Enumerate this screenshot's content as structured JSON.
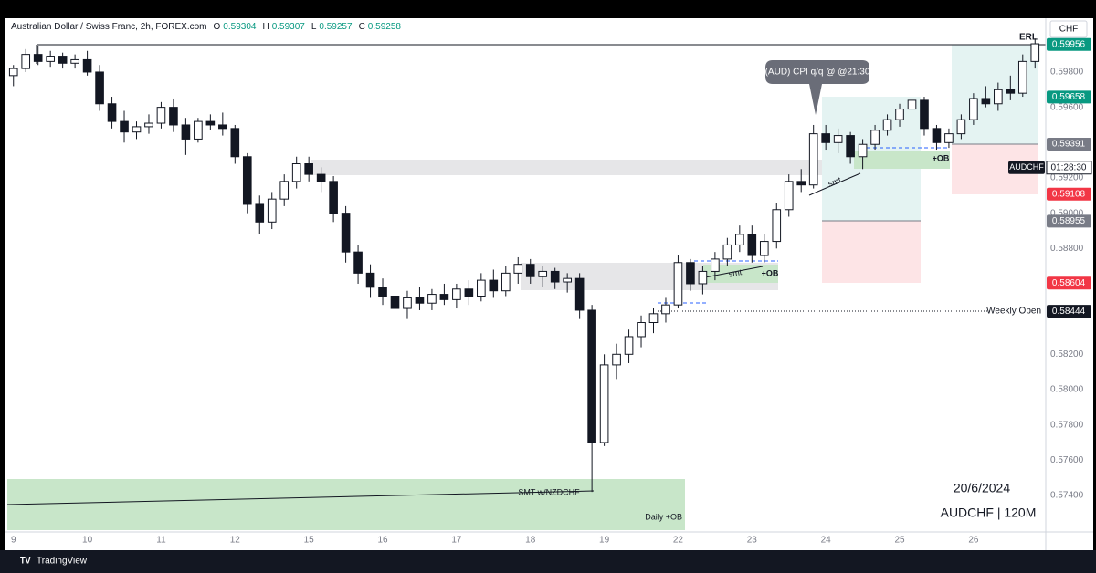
{
  "chart_data": {
    "type": "candlestick",
    "title": "Australian Dollar / Swiss Franc, 2h, FOREX.com",
    "ohlc_labels": [
      "O",
      "H",
      "L",
      "C"
    ],
    "ohlc_values": [
      0.59304,
      0.59307,
      0.59257,
      0.59258
    ],
    "currency": "CHF",
    "symbol": "AUDCHF",
    "countdown": "01:28:30",
    "footer": "TradingView",
    "categories": [
      "9",
      null,
      null,
      null,
      null,
      null,
      "10",
      null,
      null,
      null,
      null,
      null,
      "11",
      null,
      null,
      null,
      null,
      null,
      "12",
      null,
      null,
      null,
      null,
      null,
      "15",
      null,
      null,
      null,
      null,
      null,
      "16",
      null,
      null,
      null,
      null,
      null,
      "17",
      null,
      null,
      null,
      null,
      null,
      "18",
      null,
      null,
      null,
      null,
      null,
      "19",
      null,
      null,
      null,
      null,
      null,
      "22",
      null,
      null,
      null,
      null,
      null,
      "23",
      null,
      null,
      null,
      null,
      null,
      "24",
      null,
      null,
      null,
      null,
      null,
      "25",
      null,
      null,
      null,
      null,
      null,
      "26",
      null,
      null,
      null,
      null,
      null
    ],
    "open": [
      0.5978,
      0.5982,
      0.599,
      0.5986,
      0.5989,
      0.5985,
      0.5987,
      0.598,
      0.5962,
      0.5952,
      0.5946,
      0.5949,
      0.5951,
      0.596,
      0.595,
      0.5942,
      0.5952,
      0.595,
      0.5948,
      0.5932,
      0.5905,
      0.5895,
      0.5908,
      0.5918,
      0.5928,
      0.5922,
      0.5918,
      0.59,
      0.5878,
      0.5866,
      0.5858,
      0.5853,
      0.5846,
      0.5852,
      0.5849,
      0.5854,
      0.5851,
      0.5857,
      0.5853,
      0.5862,
      0.5856,
      0.5866,
      0.5871,
      0.5864,
      0.5867,
      0.5861,
      0.5863,
      0.5845,
      0.577,
      0.5814,
      0.582,
      0.583,
      0.5838,
      0.5843,
      0.5848,
      0.5872,
      0.586,
      0.5867,
      0.5874,
      0.5882,
      0.5888,
      0.5876,
      0.5884,
      0.5902,
      0.5918,
      0.5916,
      0.5945,
      0.594,
      0.5944,
      0.5932,
      0.5939,
      0.5947,
      0.5953,
      0.5959,
      0.5964,
      0.5948,
      0.594,
      0.5945,
      0.5953,
      0.5965,
      0.5962,
      0.597,
      0.5968,
      0.5986
    ],
    "high": [
      0.5984,
      0.5993,
      0.5995,
      0.5992,
      0.5991,
      0.599,
      0.5992,
      0.5984,
      0.5966,
      0.5958,
      0.5952,
      0.5956,
      0.5963,
      0.5965,
      0.5954,
      0.5954,
      0.5956,
      0.5957,
      0.595,
      0.5934,
      0.591,
      0.5912,
      0.5922,
      0.5932,
      0.5932,
      0.5926,
      0.5921,
      0.5904,
      0.5882,
      0.5871,
      0.5863,
      0.586,
      0.5856,
      0.5858,
      0.5857,
      0.586,
      0.586,
      0.5862,
      0.5866,
      0.5868,
      0.587,
      0.5875,
      0.5874,
      0.587,
      0.5869,
      0.5866,
      0.5866,
      0.5848,
      0.582,
      0.5826,
      0.5834,
      0.5842,
      0.5846,
      0.5852,
      0.5876,
      0.5874,
      0.587,
      0.5878,
      0.5886,
      0.5893,
      0.5893,
      0.5888,
      0.5906,
      0.5922,
      0.5925,
      0.595,
      0.595,
      0.5948,
      0.5946,
      0.5942,
      0.595,
      0.5956,
      0.5962,
      0.5968,
      0.5966,
      0.595,
      0.5948,
      0.5956,
      0.5968,
      0.5972,
      0.5974,
      0.5978,
      0.599,
      0.5999
    ],
    "low": [
      0.5972,
      0.598,
      0.5984,
      0.5983,
      0.5982,
      0.5982,
      0.5978,
      0.5958,
      0.5948,
      0.594,
      0.5942,
      0.5945,
      0.5948,
      0.5946,
      0.5933,
      0.594,
      0.5947,
      0.5944,
      0.5928,
      0.59,
      0.5888,
      0.5891,
      0.5904,
      0.5914,
      0.5918,
      0.5912,
      0.5895,
      0.5872,
      0.586,
      0.5852,
      0.5848,
      0.5842,
      0.584,
      0.5845,
      0.5845,
      0.5848,
      0.5846,
      0.5848,
      0.585,
      0.5852,
      0.5853,
      0.586,
      0.586,
      0.5858,
      0.5857,
      0.5855,
      0.584,
      0.5742,
      0.5768,
      0.5806,
      0.5815,
      0.5824,
      0.5832,
      0.5838,
      0.5846,
      0.5856,
      0.5854,
      0.5862,
      0.587,
      0.5878,
      0.5872,
      0.5872,
      0.588,
      0.5898,
      0.5912,
      0.5914,
      0.5936,
      0.5934,
      0.5928,
      0.5925,
      0.5936,
      0.5944,
      0.5949,
      0.5955,
      0.5944,
      0.5936,
      0.5937,
      0.5942,
      0.595,
      0.596,
      0.5958,
      0.5964,
      0.5966,
      0.5982
    ],
    "close": [
      0.5982,
      0.599,
      0.5986,
      0.5989,
      0.5985,
      0.5987,
      0.598,
      0.5962,
      0.5952,
      0.5946,
      0.5949,
      0.5951,
      0.596,
      0.595,
      0.5942,
      0.5952,
      0.595,
      0.5948,
      0.5932,
      0.5905,
      0.5895,
      0.5908,
      0.5918,
      0.5928,
      0.5922,
      0.5918,
      0.59,
      0.5878,
      0.5866,
      0.5858,
      0.5853,
      0.5846,
      0.5852,
      0.5849,
      0.5854,
      0.5851,
      0.5857,
      0.5853,
      0.5862,
      0.5856,
      0.5866,
      0.5871,
      0.5864,
      0.5867,
      0.5861,
      0.5863,
      0.5845,
      0.577,
      0.5814,
      0.582,
      0.583,
      0.5838,
      0.5843,
      0.5848,
      0.5872,
      0.586,
      0.5867,
      0.5874,
      0.5882,
      0.5888,
      0.5876,
      0.5884,
      0.5902,
      0.5918,
      0.5916,
      0.5945,
      0.594,
      0.5944,
      0.5932,
      0.5939,
      0.5947,
      0.5953,
      0.5959,
      0.5964,
      0.5948,
      0.594,
      0.5945,
      0.5953,
      0.5965,
      0.5962,
      0.597,
      0.5968,
      0.5986,
      0.5996
    ],
    "colors": {
      "up": "#ffffff",
      "down": "#131722",
      "wick": "#131722"
    },
    "ylim": [
      0.57105,
      0.60105
    ],
    "yticks": [
      {
        "value": 0.598,
        "label": "0.59800"
      },
      {
        "value": 0.596,
        "label": "0.59600"
      },
      {
        "value": 0.592,
        "label": "0.59200"
      },
      {
        "value": 0.59,
        "label": "0.59000"
      },
      {
        "value": 0.588,
        "label": "0.58800"
      },
      {
        "value": 0.582,
        "label": "0.58200"
      },
      {
        "value": 0.58,
        "label": "0.58000"
      },
      {
        "value": 0.578,
        "label": "0.57800"
      },
      {
        "value": 0.576,
        "label": "0.57600"
      },
      {
        "value": 0.574,
        "label": "0.57400"
      }
    ],
    "grid": false,
    "price_labels": [
      {
        "value": 0.59956,
        "color": "#089981"
      },
      {
        "value": 0.59658,
        "color": "#089981"
      },
      {
        "value": 0.59391,
        "color": "#787b86"
      },
      {
        "value": 0.59108,
        "color": "#f23645"
      },
      {
        "value": 0.58955,
        "color": "#787b86"
      },
      {
        "value": 0.58604,
        "color": "#f23645"
      },
      {
        "value": 0.58444,
        "color": "#131722"
      }
    ],
    "annotations": [
      "ERL",
      "(AUD) CPI q/q @ @21:30",
      "smt",
      "+OB",
      "smt",
      "+OB",
      "Weekly Open",
      "SMT w/NZDCHF",
      "Daily +OB",
      "20/6/2024",
      "AUDCHF | 120M"
    ]
  }
}
